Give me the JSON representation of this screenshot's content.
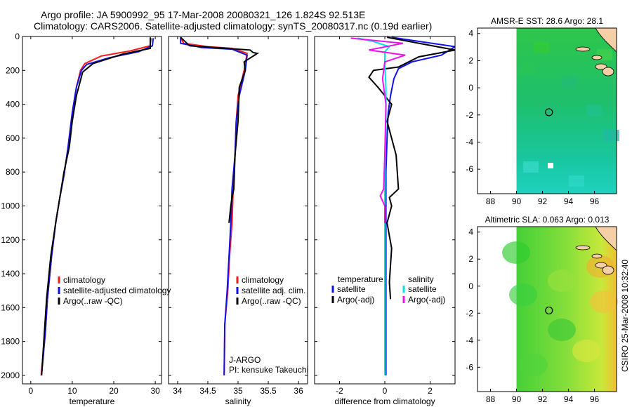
{
  "title": {
    "line1": "Argo profile: JA 5900992_95 17-Mar-2008 20080321_126 1.824S 92.513E",
    "line2": "Climatology: CARS2006. Satellite-adjusted climatology: synTS_20080317.nc (0.19d earlier)"
  },
  "stamp": "CSIRO 25-Mar-2008 10:32:40",
  "colors": {
    "red": "#ff1a1a",
    "blue": "#1010ee",
    "black": "#000000",
    "cyan": "#00e0ee",
    "magenta": "#ee10ee"
  },
  "chart_data": [
    {
      "id": "temperature",
      "type": "line",
      "xlabel": "temperature",
      "ylabel": "",
      "xlim": [
        -2,
        31.5
      ],
      "ylim": [
        2050,
        0
      ],
      "xticks": [
        0,
        10,
        20,
        30
      ],
      "yticks": [
        0,
        200,
        400,
        600,
        800,
        1000,
        1200,
        1400,
        1600,
        1800,
        2000
      ],
      "legend": {
        "placement": "bottom",
        "entries": [
          "climatology",
          "satellite-adjusted climatology",
          "Argo(..raw -QC)"
        ]
      },
      "series": [
        {
          "name": "climatology",
          "color": "red",
          "x": [
            29,
            28.7,
            24,
            17,
            13,
            12,
            11,
            10,
            9,
            8,
            7,
            6,
            5,
            4,
            3.5,
            2.5
          ],
          "y": [
            10,
            55,
            85,
            115,
            160,
            200,
            300,
            450,
            650,
            820,
            950,
            1100,
            1300,
            1550,
            1750,
            2000
          ]
        },
        {
          "name": "satellite-adjusted climatology",
          "color": "blue",
          "x": [
            29.5,
            29.3,
            26,
            19,
            13.5,
            12.2,
            11,
            10,
            9,
            8,
            7,
            6,
            5,
            4,
            3.5,
            2.6
          ],
          "y": [
            10,
            55,
            90,
            125,
            165,
            200,
            300,
            450,
            650,
            820,
            950,
            1100,
            1300,
            1550,
            1750,
            2000
          ]
        },
        {
          "name": "Argo(..raw -QC)",
          "color": "black",
          "x": [
            28.8,
            28.8,
            22,
            15,
            12.5,
            11,
            10,
            9.3,
            8,
            7,
            6,
            4.8,
            3.8,
            2.6
          ],
          "y": [
            5,
            70,
            105,
            160,
            210,
            350,
            500,
            650,
            800,
            950,
            1100,
            1300,
            1550,
            2000
          ]
        }
      ]
    },
    {
      "id": "salinity",
      "type": "line",
      "xlabel": "salinity",
      "ylabel": "",
      "xlim": [
        33.85,
        36.15
      ],
      "ylim": [
        2050,
        0
      ],
      "xticks": [
        34,
        34.5,
        35,
        35.5,
        36
      ],
      "legend": {
        "placement": "bottom",
        "entries": [
          "climatology",
          "satellite adj. clim.",
          "Argo(..raw -QC)"
        ]
      },
      "annotations": [
        "J-ARGO",
        "PI: kensuke Takeuchi"
      ],
      "series": [
        {
          "name": "climatology",
          "color": "red",
          "x": [
            34.05,
            34.1,
            34.5,
            34.9,
            35.15,
            35.1,
            35.0,
            34.97,
            34.95,
            34.92,
            34.9,
            34.86,
            34.83,
            34.78,
            34.77
          ],
          "y": [
            5,
            40,
            60,
            70,
            100,
            200,
            350,
            500,
            700,
            900,
            1100,
            1300,
            1500,
            1700,
            2000
          ]
        },
        {
          "name": "satellite adj. clim.",
          "color": "blue",
          "x": [
            34.05,
            34.05,
            34.4,
            34.9,
            35.15,
            35.12,
            35.02,
            34.97,
            34.95,
            34.9,
            34.88,
            34.85,
            34.82,
            34.78,
            34.77
          ],
          "y": [
            5,
            40,
            65,
            75,
            110,
            200,
            350,
            500,
            700,
            900,
            1100,
            1300,
            1500,
            1700,
            2000
          ]
        },
        {
          "name": "Argo(..raw -QC)",
          "color": "black",
          "x": [
            34.05,
            34.2,
            34.8,
            35.2,
            35.25,
            35.32,
            35.1,
            35.12,
            35.02,
            35.0,
            34.95,
            34.93,
            34.9,
            34.88,
            34.85
          ],
          "y": [
            5,
            55,
            70,
            80,
            95,
            100,
            150,
            200,
            300,
            500,
            700,
            900,
            950,
            1000,
            1100
          ]
        }
      ]
    },
    {
      "id": "difference",
      "type": "line",
      "xlabel": "difference from climatology",
      "ylabel": "",
      "xlim": [
        -3.1,
        3.1
      ],
      "ylim": [
        2050,
        0
      ],
      "xticks": [
        -2,
        0,
        2
      ],
      "legend": {
        "placement": "bottom",
        "entries": [
          "temperature",
          "satellite",
          "Argo(-adj)",
          "salinity",
          "satellite",
          "Argo(-adj)"
        ]
      },
      "series": [
        {
          "name": "temperature satellite",
          "color": "blue",
          "x": [
            0.3,
            3.1,
            2.5,
            1.2,
            0.6,
            0.4,
            0.25,
            0.15,
            0.1,
            0.05,
            0.05,
            0.05,
            0.05
          ],
          "y": [
            5,
            60,
            110,
            150,
            190,
            250,
            350,
            450,
            600,
            800,
            1000,
            1400,
            2000
          ]
        },
        {
          "name": "temperature Argo(-adj)",
          "color": "black",
          "x": [
            0.1,
            3.1,
            1.5,
            0.6,
            -0.5,
            -0.7,
            -0.3,
            0.3,
            0.1,
            0.5,
            0.6,
            0.2,
            0.3,
            0.1,
            0.3,
            0.2,
            0.25
          ],
          "y": [
            5,
            80,
            120,
            180,
            200,
            240,
            300,
            400,
            500,
            700,
            900,
            950,
            1000,
            1100,
            1250,
            1450,
            1550
          ]
        },
        {
          "name": "salinity satellite",
          "color": "cyan",
          "x": [
            -1.2,
            -0.5,
            0.2,
            0.0,
            0.0,
            0.05,
            0.05,
            0.0,
            0.0,
            0.0,
            0.0
          ],
          "y": [
            10,
            30,
            60,
            90,
            150,
            300,
            500,
            900,
            1300,
            1700,
            2000
          ]
        },
        {
          "name": "salinity Argo(-adj)",
          "color": "magenta",
          "x": [
            -1.5,
            0.8,
            -0.7,
            0.9,
            0.0,
            -0.1,
            0.05,
            0.0,
            -0.05,
            -0.2,
            0.0,
            0.0
          ],
          "y": [
            10,
            40,
            80,
            110,
            150,
            250,
            400,
            700,
            900,
            940,
            1000,
            1100
          ]
        }
      ]
    }
  ],
  "maps": [
    {
      "id": "sst",
      "title": "AMSR-E SST: 28.6 Argo: 28.1",
      "xticks": [
        88,
        90,
        92,
        94,
        96
      ],
      "yticks": [
        4,
        2,
        0,
        -2,
        -4,
        -6
      ],
      "xlim": [
        87,
        97.7
      ],
      "ylim": [
        -7.8,
        4.4
      ],
      "data_lon_min": 90,
      "profile_marker": {
        "lon": 92.5,
        "lat": -1.8
      }
    },
    {
      "id": "sla",
      "title": "Altimetric SLA: 0.063 Argo: 0.013",
      "xticks": [
        88,
        90,
        92,
        94,
        96
      ],
      "yticks": [
        4,
        2,
        0,
        -2,
        -4,
        -6
      ],
      "xlim": [
        87,
        97.7
      ],
      "ylim": [
        -7.8,
        4.4
      ],
      "data_lon_min": 90,
      "profile_marker": {
        "lon": 92.5,
        "lat": -1.8
      }
    }
  ]
}
